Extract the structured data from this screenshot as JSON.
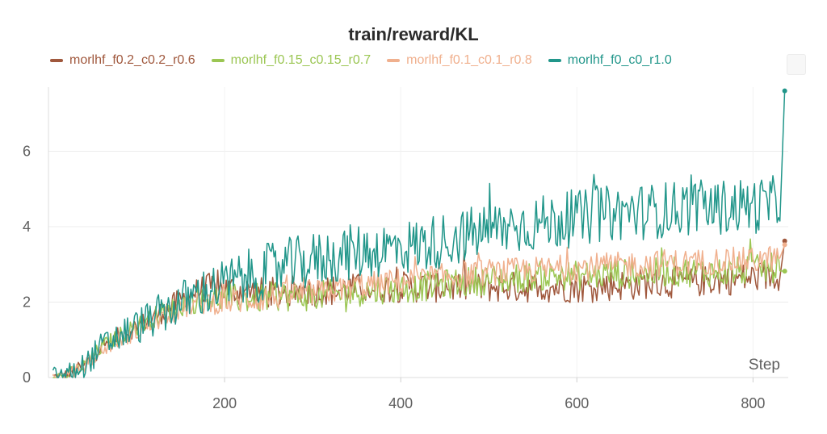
{
  "chart_data": {
    "type": "line",
    "title": "train/reward/KL",
    "xlabel": "Step",
    "ylabel": "",
    "xlim": [
      0,
      840
    ],
    "ylim": [
      0,
      7.7
    ],
    "xticks": [
      200,
      400,
      600,
      800
    ],
    "yticks": [
      0,
      2,
      4,
      6
    ],
    "grid": true,
    "legend_position": "top",
    "series": [
      {
        "name": "morlhf_f0.2_c0.2_r0.6",
        "color": "#a0583d",
        "x": [
          0,
          20,
          40,
          60,
          80,
          100,
          120,
          140,
          160,
          180,
          200,
          220,
          240,
          260,
          280,
          300,
          320,
          340,
          360,
          380,
          400,
          420,
          440,
          460,
          480,
          500,
          520,
          540,
          560,
          580,
          600,
          620,
          640,
          660,
          680,
          700,
          720,
          740,
          760,
          780,
          800,
          820,
          836
        ],
        "y": [
          0,
          0.05,
          0.3,
          0.8,
          1.1,
          1.35,
          1.6,
          1.9,
          2.2,
          2.4,
          2.35,
          2.3,
          2.25,
          2.25,
          2.3,
          2.3,
          2.3,
          2.35,
          2.35,
          2.4,
          2.4,
          2.4,
          2.4,
          2.4,
          2.4,
          2.4,
          2.4,
          2.4,
          2.4,
          2.4,
          2.4,
          2.4,
          2.45,
          2.45,
          2.5,
          2.5,
          2.55,
          2.55,
          2.6,
          2.6,
          2.65,
          2.7,
          3.62
        ]
      },
      {
        "name": "morlhf_f0.15_c0.15_r0.7",
        "color": "#9bc653",
        "x": [
          0,
          20,
          40,
          60,
          80,
          100,
          120,
          140,
          160,
          180,
          200,
          220,
          240,
          260,
          280,
          300,
          320,
          340,
          360,
          380,
          400,
          420,
          440,
          460,
          480,
          500,
          520,
          540,
          560,
          580,
          600,
          620,
          640,
          660,
          680,
          700,
          720,
          740,
          760,
          780,
          800,
          820,
          836
        ],
        "y": [
          0,
          0.05,
          0.3,
          0.8,
          1.1,
          1.35,
          1.6,
          1.8,
          2.0,
          2.1,
          2.1,
          2.1,
          2.1,
          2.15,
          2.15,
          2.15,
          2.2,
          2.25,
          2.3,
          2.35,
          2.35,
          2.4,
          2.45,
          2.5,
          2.55,
          2.6,
          2.6,
          2.65,
          2.7,
          2.7,
          2.7,
          2.7,
          2.75,
          2.75,
          2.75,
          2.8,
          2.8,
          2.8,
          2.8,
          2.8,
          2.85,
          2.9,
          2.82
        ]
      },
      {
        "name": "morlhf_f0.1_c0.1_r0.8",
        "color": "#f0b08e",
        "x": [
          0,
          20,
          40,
          60,
          80,
          100,
          120,
          140,
          160,
          180,
          200,
          220,
          240,
          260,
          280,
          300,
          320,
          340,
          360,
          380,
          400,
          420,
          440,
          460,
          480,
          500,
          520,
          540,
          560,
          580,
          600,
          620,
          640,
          660,
          680,
          700,
          720,
          740,
          760,
          780,
          800,
          820,
          836
        ],
        "y": [
          0,
          0.05,
          0.3,
          0.7,
          1.0,
          1.2,
          1.45,
          1.7,
          1.9,
          2.0,
          2.0,
          2.05,
          2.1,
          2.15,
          2.2,
          2.25,
          2.3,
          2.4,
          2.45,
          2.5,
          2.55,
          2.6,
          2.65,
          2.7,
          2.75,
          2.8,
          2.8,
          2.85,
          2.85,
          2.9,
          2.9,
          2.95,
          2.95,
          3.0,
          3.0,
          3.05,
          3.05,
          3.05,
          3.1,
          3.1,
          3.1,
          3.15,
          3.52
        ]
      },
      {
        "name": "morlhf_f0_c0_r1.0",
        "color": "#21968a",
        "x": [
          0,
          20,
          40,
          60,
          80,
          100,
          120,
          140,
          160,
          180,
          200,
          220,
          240,
          260,
          280,
          300,
          320,
          340,
          360,
          380,
          400,
          420,
          440,
          460,
          480,
          500,
          520,
          540,
          560,
          580,
          600,
          620,
          640,
          660,
          680,
          700,
          720,
          740,
          760,
          780,
          800,
          820,
          836
        ],
        "y": [
          0,
          0.05,
          0.3,
          0.8,
          1.1,
          1.35,
          1.6,
          1.85,
          2.1,
          2.3,
          2.45,
          2.6,
          2.75,
          2.9,
          3.0,
          3.1,
          3.2,
          3.3,
          3.35,
          3.4,
          3.45,
          3.5,
          3.6,
          3.7,
          3.8,
          3.9,
          4.0,
          4.05,
          4.1,
          4.15,
          4.2,
          4.3,
          4.35,
          4.4,
          4.4,
          4.45,
          4.5,
          4.5,
          4.5,
          4.55,
          4.55,
          4.6,
          7.6
        ]
      }
    ]
  }
}
